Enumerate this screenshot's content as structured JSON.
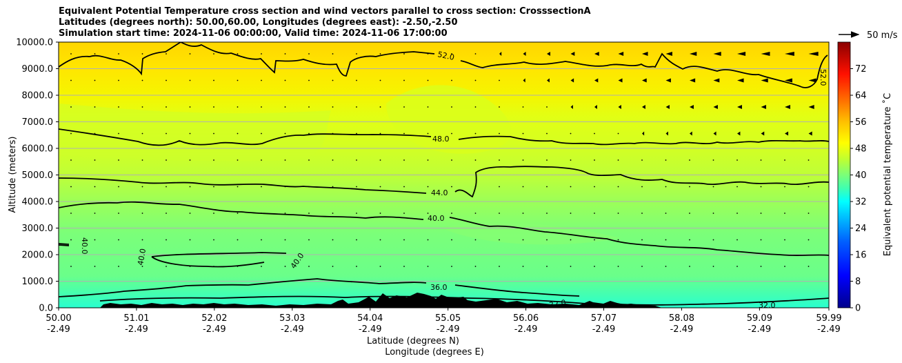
{
  "chart_data": {
    "type": "heatmap",
    "title_lines": [
      "Equivalent Potential Temperature cross section and wind vectors parallel to cross section: CrosssectionA",
      "Latitudes (degrees north): 50.00,60.00, Longitudes (degrees east): -2.50,-2.50",
      "Simulation start time: 2024-11-06 00:00:00, Valid time: 2024-11-06 17:00:00"
    ],
    "ylabel": "Altitude (meters)",
    "xlabel_lines": [
      "Latitude (degrees N)",
      "Longitude (degrees E)"
    ],
    "ylim": [
      0,
      10000
    ],
    "yticks": [
      "0.0",
      "1000.0",
      "2000.0",
      "3000.0",
      "4000.0",
      "5000.0",
      "6000.0",
      "7000.0",
      "8000.0",
      "9000.0",
      "10000.0"
    ],
    "xlim": [
      50.0,
      59.99
    ],
    "x_ticks": [
      {
        "lat": "50.00",
        "lon": "-2.49"
      },
      {
        "lat": "51.01",
        "lon": "-2.49"
      },
      {
        "lat": "52.02",
        "lon": "-2.49"
      },
      {
        "lat": "53.03",
        "lon": "-2.49"
      },
      {
        "lat": "54.04",
        "lon": "-2.49"
      },
      {
        "lat": "55.05",
        "lon": "-2.49"
      },
      {
        "lat": "56.06",
        "lon": "-2.49"
      },
      {
        "lat": "57.07",
        "lon": "-2.49"
      },
      {
        "lat": "58.08",
        "lon": "-2.49"
      },
      {
        "lat": "59.09",
        "lon": "-2.49"
      },
      {
        "lat": "59.99",
        "lon": "-2.49"
      }
    ],
    "grid": "horizontal",
    "colorbar": {
      "label": "Equivalent potential temperature ˚C",
      "ticks": [
        "0",
        "8",
        "16",
        "24",
        "32",
        "40",
        "48",
        "56",
        "64",
        "72"
      ],
      "range": [
        0,
        80
      ]
    },
    "contours": [
      {
        "label": "32.0",
        "level": 32
      },
      {
        "label": "36.0",
        "level": 36
      },
      {
        "label": "40.0",
        "level": 40
      },
      {
        "label": "44.0",
        "level": 44
      },
      {
        "label": "48.0",
        "level": 48
      },
      {
        "label": "52.0",
        "level": 52
      }
    ],
    "quiver_key": "50 m/s",
    "colors": {
      "terrain": "#000000",
      "contour": "#000000",
      "grid": "#b0b0b0"
    }
  }
}
